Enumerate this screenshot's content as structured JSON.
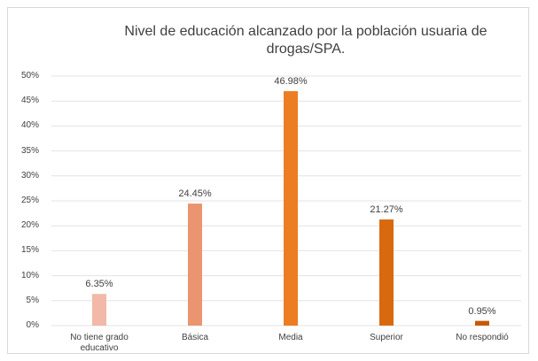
{
  "chart_data": {
    "type": "bar",
    "title": "Nivel de educación alcanzado por la población usuaria de drogas/SPA.",
    "categories": [
      "No tiene grado educativo",
      "Básica",
      "Media",
      "Superior",
      "No respondió"
    ],
    "values": [
      6.35,
      24.45,
      46.98,
      21.27,
      0.95
    ],
    "value_labels": [
      "6.35%",
      "24.45%",
      "46.98%",
      "21.27%",
      "0.95%"
    ],
    "colors": [
      "#f2b8a8",
      "#ea9470",
      "#ed7d22",
      "#d9690f",
      "#c65a0a"
    ],
    "ylim": [
      0,
      50
    ],
    "yticks": [
      {
        "value": 0,
        "label": "0%"
      },
      {
        "value": 5,
        "label": "5%"
      },
      {
        "value": 10,
        "label": "10%"
      },
      {
        "value": 15,
        "label": "15%"
      },
      {
        "value": 20,
        "label": "20%"
      },
      {
        "value": 25,
        "label": "25%"
      },
      {
        "value": 30,
        "label": "30%"
      },
      {
        "value": 35,
        "label": "35%"
      },
      {
        "value": 40,
        "label": "40%"
      },
      {
        "value": 45,
        "label": "45%"
      },
      {
        "value": 50,
        "label": "50%"
      }
    ],
    "grid": true
  }
}
